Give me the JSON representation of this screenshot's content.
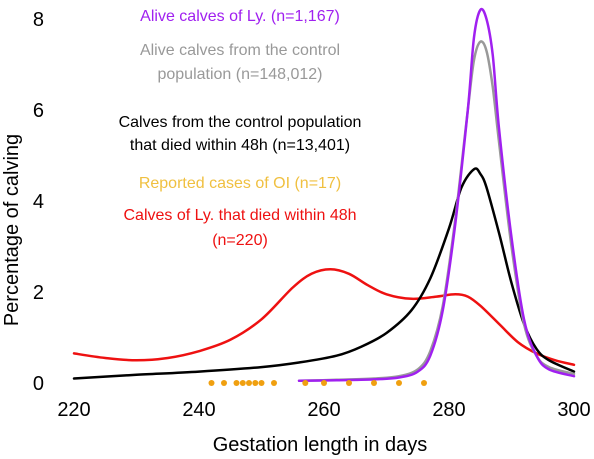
{
  "chart_data": {
    "type": "line",
    "xlabel": "Gestation length in days",
    "ylabel": "Percentage of calving",
    "xlim": [
      220,
      300
    ],
    "ylim": [
      0,
      8.2
    ],
    "xticks": [
      "220",
      "240",
      "260",
      "280",
      "300"
    ],
    "yticks": [
      "0",
      "2",
      "4",
      "6",
      "8"
    ],
    "grid": false,
    "legend_position": "top-center",
    "series": [
      {
        "name": "Alive calves of Ly. (n=1,167)",
        "color": "#a020f0",
        "x": [
          256,
          262,
          268,
          272,
          275,
          277,
          279,
          281,
          283,
          284,
          285,
          286,
          287,
          288,
          290,
          292,
          294,
          296,
          300
        ],
        "y": [
          0.05,
          0.06,
          0.08,
          0.12,
          0.25,
          0.6,
          1.6,
          3.5,
          6.0,
          7.6,
          8.2,
          8.0,
          7.2,
          5.6,
          3.2,
          1.4,
          0.6,
          0.3,
          0.15
        ]
      },
      {
        "name": "Alive calves from the control population (n=148,012)",
        "color": "#999999",
        "x": [
          256,
          262,
          268,
          272,
          275,
          277,
          279,
          281,
          283,
          284,
          285,
          286,
          287,
          288,
          290,
          292,
          294,
          296,
          300
        ],
        "y": [
          0.05,
          0.07,
          0.1,
          0.15,
          0.3,
          0.7,
          1.7,
          3.6,
          6.0,
          7.1,
          7.5,
          7.3,
          6.5,
          5.3,
          3.0,
          1.3,
          0.6,
          0.35,
          0.2
        ]
      },
      {
        "name": "Calves from the control population that died within 48h (n=13,401)",
        "color": "#000000",
        "x": [
          220,
          230,
          240,
          250,
          256,
          262,
          266,
          270,
          274,
          277,
          280,
          282,
          284,
          285,
          286,
          288,
          290,
          292,
          294,
          296,
          300
        ],
        "y": [
          0.1,
          0.18,
          0.25,
          0.35,
          0.45,
          0.6,
          0.8,
          1.1,
          1.6,
          2.3,
          3.4,
          4.3,
          4.7,
          4.6,
          4.3,
          3.3,
          2.2,
          1.3,
          0.75,
          0.5,
          0.25
        ]
      },
      {
        "name": "Calves of Ly. that died within 48h (n=220)",
        "color": "#ee1111",
        "x": [
          220,
          225,
          230,
          235,
          240,
          245,
          250,
          255,
          258,
          261,
          264,
          267,
          270,
          274,
          278,
          281,
          283,
          285,
          288,
          291,
          294,
          297,
          300
        ],
        "y": [
          0.65,
          0.55,
          0.5,
          0.55,
          0.7,
          0.95,
          1.4,
          2.1,
          2.4,
          2.5,
          2.4,
          2.15,
          1.95,
          1.85,
          1.9,
          1.95,
          1.9,
          1.7,
          1.3,
          0.9,
          0.65,
          0.5,
          0.4
        ]
      },
      {
        "name": "Reported cases of OI (n=17)",
        "color": "#f0a010",
        "type": "scatter",
        "x": [
          242,
          244,
          246,
          247,
          248,
          249,
          250,
          252,
          257,
          260,
          264,
          268,
          272,
          276
        ],
        "y": [
          0,
          0,
          0,
          0,
          0,
          0,
          0,
          0,
          0,
          0,
          0,
          0,
          0,
          0
        ]
      }
    ],
    "legend": [
      {
        "lines": [
          "Alive calves of Ly. (n=1,167)"
        ],
        "color": "#a020f0"
      },
      {
        "lines": [
          "Alive calves from the control",
          "population (n=148,012)"
        ],
        "color": "#999999"
      },
      {
        "lines": [
          "Calves from the control population",
          "that died within 48h (n=13,401)"
        ],
        "color": "#000000"
      },
      {
        "lines": [
          "Reported cases of OI (n=17)"
        ],
        "color": "#f0c040"
      },
      {
        "lines": [
          "Calves of Ly. that died within 48h",
          "(n=220)"
        ],
        "color": "#ee1111"
      }
    ]
  }
}
